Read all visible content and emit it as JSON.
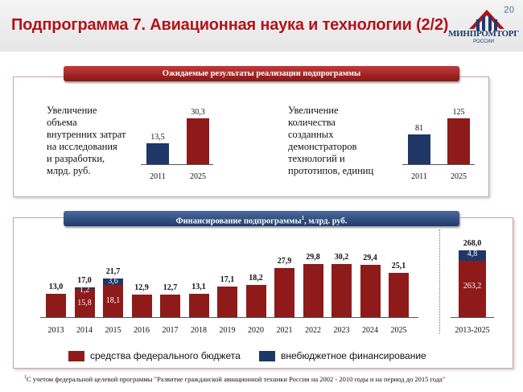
{
  "header": {
    "title": "Подпрограмма 7. Авиационная наука и технологии (2/2)",
    "page_number": "20",
    "logo_text": "МИНПРОМТОРГ",
    "logo_sub": "РОССИИ",
    "logo_icon": "ministry-logo-icon"
  },
  "results": {
    "banner": "Ожидаемые результаты реализации подпрограммы",
    "block1": {
      "lines": [
        "Увеличение",
        "объема",
        "внутренних затрат",
        "на исследования",
        "и разработки,",
        "млрд. руб."
      ],
      "values": [
        "13,5",
        "30,3"
      ],
      "years": [
        "2011",
        "2025"
      ]
    },
    "block2": {
      "lines": [
        "Увеличение",
        "количества",
        "созданных",
        "демонстраторов",
        "технологий и",
        "прототипов, единиц"
      ],
      "values": [
        "81",
        "125"
      ],
      "years": [
        "2011",
        "2025"
      ]
    }
  },
  "financing": {
    "banner_text": "Финансирование подпрограммы",
    "banner_sup": "1",
    "banner_tail": ", млрд. руб.",
    "legend_federal": "средства федерального бюджета",
    "legend_extra": "внебюджетное финансирование",
    "total_period": "2013-2025",
    "total_value": "268,0",
    "total_federal": "263,2",
    "total_extra": "4,8"
  },
  "colors": {
    "federal": "#8f1a1a",
    "extra": "#1f3766",
    "title": "#b0141c"
  },
  "chart_data": [
    {
      "type": "bar",
      "categories": [
        "2011",
        "2025"
      ],
      "series": [
        {
          "values": [
            13.5,
            30.3
          ]
        }
      ]
    },
    {
      "type": "bar",
      "categories": [
        "2011",
        "2025"
      ],
      "series": [
        {
          "values": [
            81,
            125
          ]
        }
      ]
    },
    {
      "type": "bar",
      "stacked": true,
      "categories": [
        "2013",
        "2014",
        "2015",
        "2016",
        "2017",
        "2018",
        "2019",
        "2020",
        "2021",
        "2022",
        "2023",
        "2024",
        "2025"
      ],
      "totals": [
        "13,0",
        "17,0",
        "21,7",
        "12,9",
        "12,7",
        "13,1",
        "17,1",
        "18,2",
        "27,9",
        "29,8",
        "30,2",
        "29,4",
        "25,1"
      ],
      "series": [
        {
          "name": "средства федерального бюджета",
          "values": [
            13.0,
            15.8,
            18.1,
            12.9,
            12.7,
            13.1,
            17.1,
            18.2,
            27.9,
            29.8,
            30.2,
            29.4,
            25.1
          ],
          "labels": [
            "",
            "15,8",
            "18,1",
            "",
            "",
            "",
            "",
            "",
            "",
            "",
            "",
            "",
            ""
          ]
        },
        {
          "name": "внебюджетное финансирование",
          "values": [
            0,
            1.2,
            3.6,
            0,
            0,
            0,
            0,
            0,
            0,
            0,
            0,
            0,
            0
          ],
          "labels": [
            "",
            "1,2",
            "3,6",
            "",
            "",
            "",
            "",
            "",
            "",
            "",
            "",
            "",
            ""
          ]
        }
      ]
    }
  ],
  "footnote": {
    "sup": "1",
    "text": "С учетом федеральной целевой программы \"Развитие гражданской авиационной техники России на 2002 - 2010 годы и на период до 2015 года\""
  }
}
